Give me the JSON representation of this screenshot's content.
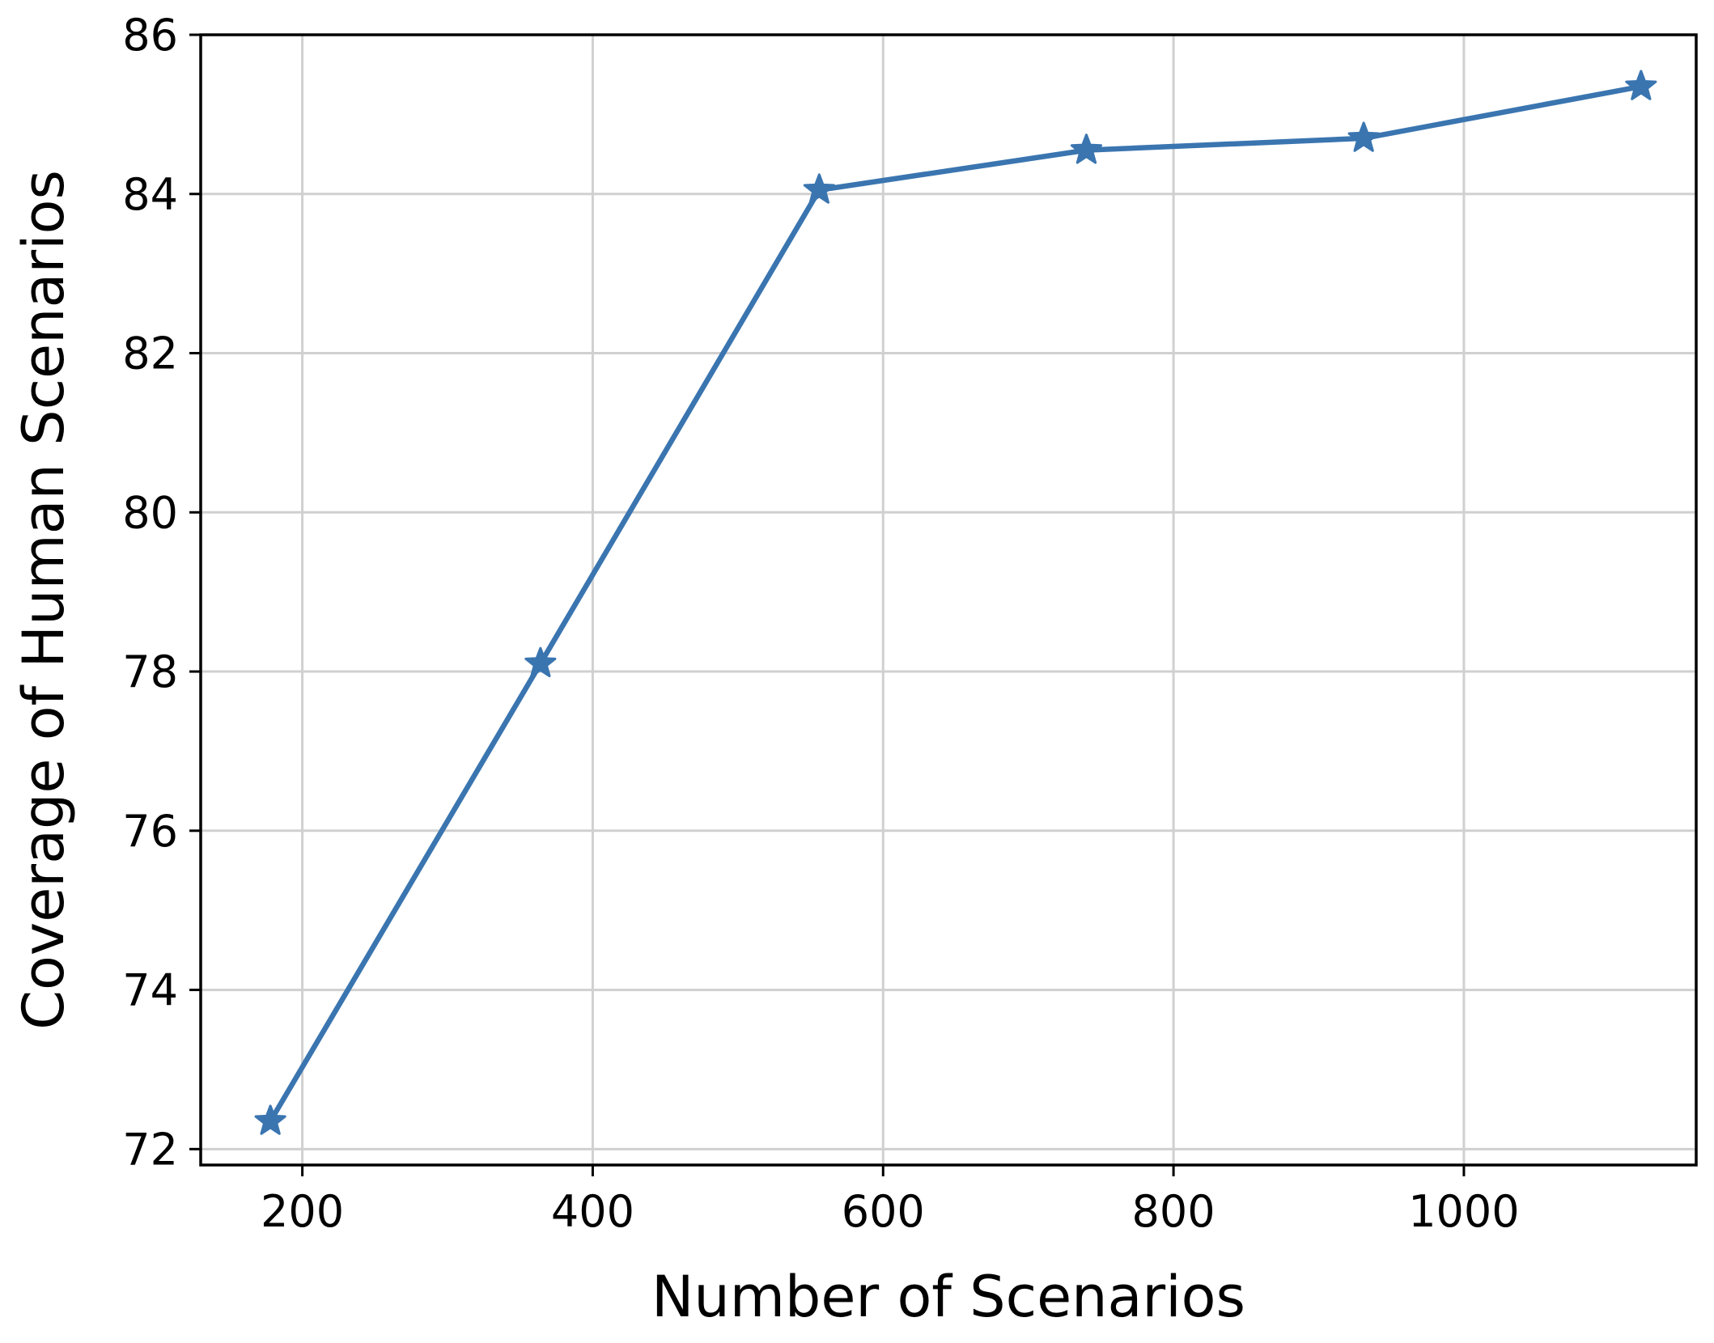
{
  "chart_data": {
    "type": "line",
    "title": "",
    "xlabel": "Number of Scenarios",
    "ylabel": "Coverage of Human Scenarios",
    "xlim": [
      130,
      1160
    ],
    "ylim": [
      71.8,
      86
    ],
    "xticks": [
      200,
      400,
      600,
      800,
      1000
    ],
    "yticks": [
      72,
      74,
      76,
      78,
      80,
      82,
      84,
      86
    ],
    "grid": true,
    "series": [
      {
        "marker": "star",
        "color": "#3a75b0",
        "x": [
          178,
          364,
          556,
          740,
          931,
          1122
        ],
        "y": [
          72.35,
          78.1,
          84.05,
          84.55,
          84.7,
          85.35
        ]
      }
    ]
  }
}
